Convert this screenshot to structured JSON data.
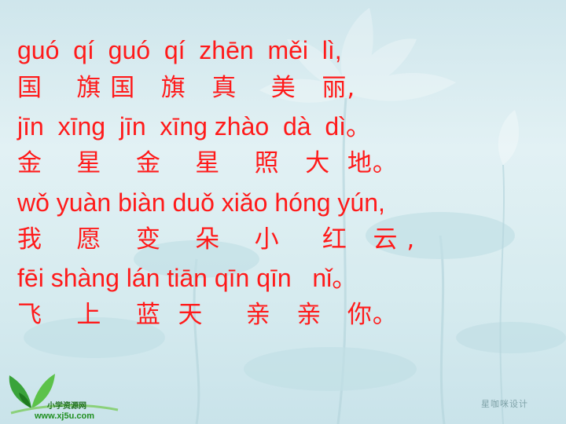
{
  "poem": {
    "lines": [
      {
        "type": "pinyin",
        "text": "guó  qí  guó  qí  zhēn  měi  lì,"
      },
      {
        "type": "hanzi",
        "text": "国    旗 国   旗   真    美   丽,"
      },
      {
        "type": "pinyin",
        "text": "jīn  xīng  jīn  xīng zhào  dà  dì。"
      },
      {
        "type": "hanzi",
        "text": "金    星    金    星    照   大  地。"
      },
      {
        "type": "pinyin",
        "text": "wǒ yuàn biàn duǒ xiǎo hóng yún,"
      },
      {
        "type": "hanzi",
        "text": "我    愿    变    朵    小     红   云 ,"
      },
      {
        "type": "pinyin",
        "text": "fēi shàng lán tiān qīn qīn   nǐ。"
      },
      {
        "type": "hanzi",
        "text": "飞    上    蓝  天     亲   亲   你。"
      }
    ]
  },
  "logo": {
    "name": "小学资源网",
    "url": "www.xj5u.com"
  },
  "designer": "星咖咪设计",
  "colors": {
    "text": "#ff1a1a",
    "background": "#d6ebef"
  }
}
